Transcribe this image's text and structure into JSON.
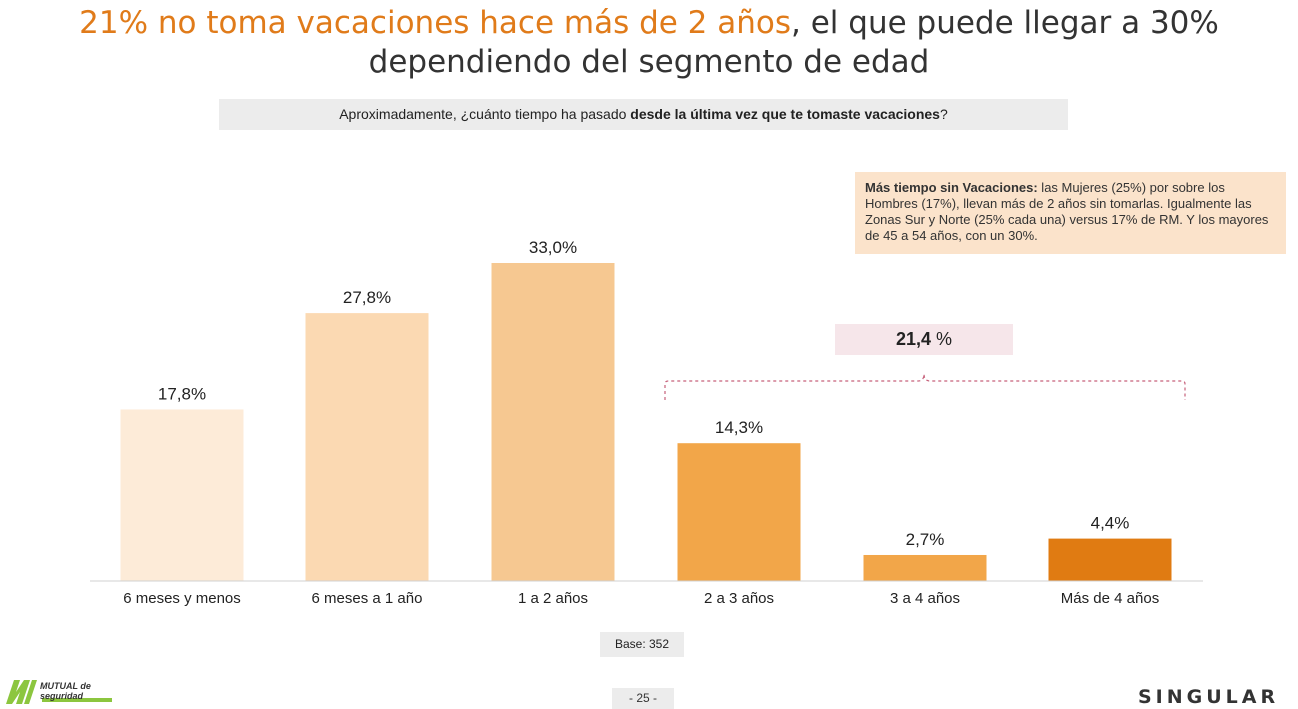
{
  "header": {
    "title_highlight": "21% no toma vacaciones hace más de 2 años",
    "title_rest": ", el que puede llegar a 30%",
    "title_line2": "dependiendo del segmento de edad"
  },
  "question": {
    "prefix": "Aproximadamente, ¿cuánto tiempo ha pasado ",
    "bold": "desde la última vez que te tomaste vacaciones",
    "suffix": "?"
  },
  "note": {
    "bold": "Más tiempo sin Vacaciones:",
    "text": " las Mujeres (25%) por sobre los Hombres (17%), llevan más de 2 años sin tomarlas. Igualmente las Zonas Sur y Norte (25% cada una) versus 17% de RM. Y los mayores de 45 a 54 años, con un 30%."
  },
  "summary": {
    "value": "21,4",
    "unit": " %"
  },
  "base_label": "Base: 352",
  "page_number": "- 25 -",
  "logos": {
    "left": "MUTUAL de seguridad",
    "right": "SINGULAR"
  },
  "chart_data": {
    "type": "bar",
    "categories": [
      "6 meses y menos",
      "6 meses a 1 año",
      "1 a 2 años",
      "2 a 3 años",
      "3 a 4 años",
      "Más de 4 años"
    ],
    "values": [
      17.8,
      27.8,
      33.0,
      14.3,
      2.7,
      4.4
    ],
    "labels": [
      "17,8%",
      "27,8%",
      "33,0%",
      "14,3%",
      "2,7%",
      "4,4%"
    ],
    "colors": [
      "#fdebd8",
      "#fbd9b2",
      "#f6c891",
      "#f2a649",
      "#f2a649",
      "#e07b12"
    ],
    "ylim": [
      0,
      33
    ],
    "grid": false,
    "legend": "none"
  }
}
